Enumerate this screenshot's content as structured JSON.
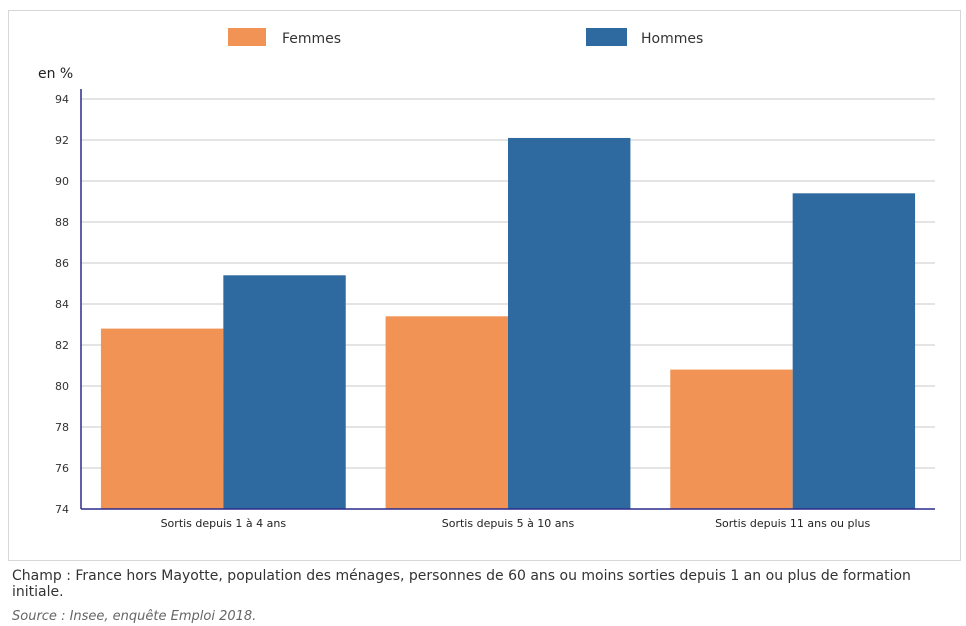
{
  "chart_data": {
    "type": "bar",
    "ylabel": "en %",
    "categories": [
      "Sortis depuis 1 à 4 ans",
      "Sortis depuis 5 à 10 ans",
      "Sortis depuis 11 ans ou plus"
    ],
    "series": [
      {
        "name": "Femmes",
        "values": [
          82.8,
          83.4,
          80.8
        ],
        "color": "#f09355"
      },
      {
        "name": "Hommes",
        "values": [
          85.4,
          92.1,
          89.4
        ],
        "color": "#2e6a9f"
      }
    ],
    "ylim": [
      74,
      94
    ],
    "yticks": [
      "74",
      "76",
      "78",
      "80",
      "82",
      "84",
      "86",
      "88",
      "90",
      "92",
      "94"
    ],
    "grid": true,
    "legend_position": "top"
  },
  "caption": "Champ : France hors Mayotte, population des ménages, personnes de 60 ans ou moins sorties depuis 1 an ou plus de formation initiale.",
  "source": "Source : Insee, enquête Emploi 2018."
}
